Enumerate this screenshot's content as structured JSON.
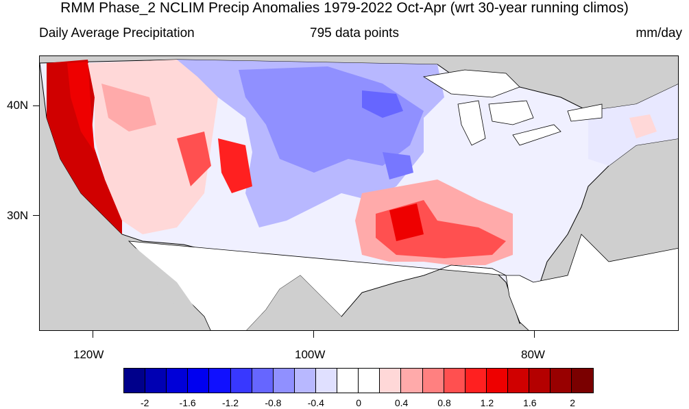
{
  "title": "RMM Phase_2 NCLIM Precip Anomalies 1979-2022 Oct-Apr (wrt 30-year running climos)",
  "subtitle_left": "Daily Average Precipitation",
  "subtitle_center": "795 data points",
  "subtitle_right": "mm/day",
  "lat_labels": [
    "40N",
    "30N"
  ],
  "lon_labels": [
    "120W",
    "100W",
    "80W"
  ],
  "colorbar": {
    "colors": [
      "#00008b",
      "#0000b3",
      "#0000d8",
      "#0000f0",
      "#1010ff",
      "#3838ff",
      "#6666ff",
      "#9090ff",
      "#b8b8ff",
      "#e0e0ff",
      "#ffffff",
      "#ffffff",
      "#ffd8d8",
      "#ffaaaa",
      "#ff8080",
      "#ff5050",
      "#ff2020",
      "#ee0000",
      "#d00000",
      "#b40000",
      "#980000",
      "#7a0000"
    ],
    "labels": [
      "-2",
      "-1.6",
      "-1.2",
      "-0.8",
      "-0.4",
      "0",
      "0.4",
      "0.8",
      "1.2",
      "1.6",
      "2"
    ]
  },
  "map": {
    "ocean_land_mask": "#cfcfcf"
  }
}
